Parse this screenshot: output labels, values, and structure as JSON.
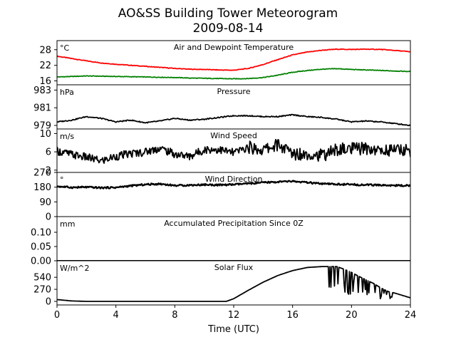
{
  "title_line1": "AO&SS Building Tower Meteorogram",
  "title_line2": "2009-08-14",
  "xlabel": "Time (UTC)",
  "colors": {
    "temperature": "#ff0000",
    "dewpoint": "#008000",
    "default": "#000000"
  },
  "chart_data": [
    {
      "id": "temp",
      "type": "line",
      "title": "Air and Dewpoint Temperature",
      "unit": "°C",
      "xlim": [
        0,
        24
      ],
      "ylim": [
        14.5,
        31.5
      ],
      "yticks": [
        16,
        22,
        28
      ],
      "ytick_labels": [
        "16",
        "22",
        "28"
      ],
      "series": [
        {
          "key": "temperature",
          "x": [
            0,
            1,
            2,
            3,
            4,
            5,
            6,
            7,
            8,
            9,
            10,
            11,
            12,
            13,
            14,
            15,
            16,
            17,
            18,
            19,
            20,
            21,
            22,
            23,
            24
          ],
          "values": [
            25.5,
            24.6,
            23.7,
            22.9,
            22.4,
            22.0,
            21.6,
            21.2,
            20.8,
            20.5,
            20.4,
            20.2,
            20.1,
            20.8,
            22.3,
            24.2,
            26.0,
            27.1,
            27.8,
            28.2,
            28.1,
            28.2,
            28.1,
            27.7,
            27.2
          ]
        },
        {
          "key": "dewpoint",
          "x": [
            0,
            1,
            2,
            3,
            4,
            5,
            6,
            7,
            8,
            9,
            10,
            11,
            12,
            13,
            14,
            15,
            16,
            17,
            18,
            19,
            20,
            21,
            22,
            23,
            24
          ],
          "values": [
            17.5,
            17.7,
            17.9,
            17.8,
            17.7,
            17.6,
            17.5,
            17.4,
            17.3,
            17.1,
            17.0,
            16.9,
            16.8,
            16.9,
            17.3,
            18.2,
            19.3,
            20.0,
            20.5,
            20.7,
            20.4,
            20.2,
            20.0,
            19.8,
            19.6
          ]
        }
      ]
    },
    {
      "id": "pressure",
      "type": "line",
      "title": "Pressure",
      "unit": "hPa",
      "xlim": [
        0,
        24
      ],
      "ylim": [
        978.6,
        983.6
      ],
      "yticks": [
        979,
        981,
        983
      ],
      "ytick_labels": [
        "979",
        "981",
        "983"
      ],
      "series": [
        {
          "key": "default",
          "x": [
            0,
            1,
            2,
            3,
            4,
            5,
            6,
            7,
            8,
            9,
            10,
            11,
            12,
            13,
            14,
            15,
            16,
            17,
            18,
            19,
            20,
            21,
            22,
            23,
            24
          ],
          "values": [
            979.4,
            979.6,
            980.0,
            979.8,
            979.4,
            979.6,
            979.3,
            979.5,
            979.8,
            979.6,
            979.7,
            979.9,
            980.1,
            980.1,
            980.0,
            980.0,
            980.2,
            980.0,
            979.9,
            979.7,
            979.4,
            979.5,
            979.4,
            979.2,
            979.0
          ]
        }
      ]
    },
    {
      "id": "wspd",
      "type": "line",
      "title": "Wind Speed",
      "unit": "m/s",
      "xlim": [
        0,
        24
      ],
      "ylim": [
        1.5,
        11.0
      ],
      "yticks": [
        2,
        6,
        10
      ],
      "ytick_labels": [
        "2",
        "6",
        "10"
      ],
      "series": [
        {
          "key": "default",
          "x": [
            0,
            1,
            2,
            3,
            4,
            5,
            6,
            7,
            8,
            9,
            10,
            11,
            12,
            13,
            14,
            15,
            16,
            17,
            18,
            19,
            20,
            21,
            22,
            23,
            24
          ],
          "values": [
            6.2,
            5.4,
            4.8,
            4.0,
            5.0,
            5.6,
            6.0,
            6.8,
            5.5,
            5.0,
            6.5,
            6.5,
            5.8,
            7.0,
            6.4,
            7.6,
            5.6,
            5.6,
            5.2,
            6.5,
            6.6,
            6.8,
            6.2,
            6.6,
            6.2
          ]
        }
      ]
    },
    {
      "id": "wdir",
      "type": "line",
      "title": "Wind Direction",
      "unit": "°",
      "xlim": [
        0,
        24
      ],
      "ylim": [
        0,
        270
      ],
      "yticks": [
        0,
        90,
        180,
        270
      ],
      "ytick_labels": [
        "0",
        "90",
        "180",
        "270"
      ],
      "series": [
        {
          "key": "default",
          "x": [
            0,
            1,
            2,
            3,
            4,
            5,
            6,
            7,
            8,
            9,
            10,
            11,
            12,
            13,
            14,
            15,
            16,
            17,
            18,
            19,
            20,
            21,
            22,
            23,
            24
          ],
          "values": [
            185,
            178,
            180,
            176,
            178,
            188,
            196,
            200,
            190,
            192,
            195,
            193,
            196,
            202,
            208,
            212,
            216,
            208,
            200,
            198,
            196,
            194,
            192,
            190,
            190
          ]
        }
      ]
    },
    {
      "id": "precip",
      "type": "line",
      "title": "Accumulated Precipitation Since 0Z",
      "unit": "mm",
      "xlim": [
        0,
        24
      ],
      "ylim": [
        0,
        0.155
      ],
      "yticks": [
        0.0,
        0.05,
        0.1
      ],
      "ytick_labels": [
        "0.00",
        "0.05",
        "0.10"
      ],
      "series": [
        {
          "key": "default",
          "x": [
            0,
            24
          ],
          "values": [
            0.0,
            0.0
          ]
        }
      ]
    },
    {
      "id": "solar",
      "type": "line",
      "title": "Solar Flux",
      "unit": "W/m^2",
      "xlim": [
        0,
        24
      ],
      "ylim": [
        -80,
        910
      ],
      "yticks": [
        0,
        270,
        540
      ],
      "ytick_labels": [
        "0",
        "270",
        "540"
      ],
      "series": [
        {
          "key": "default",
          "x": [
            0,
            1,
            2,
            3,
            4,
            5,
            6,
            7,
            8,
            9,
            10,
            11,
            11.5,
            12,
            13,
            14,
            15,
            16,
            17,
            18,
            18.5,
            19,
            19.5,
            20,
            20.5,
            21,
            21.5,
            22,
            22.5,
            23,
            24
          ],
          "values": [
            40,
            10,
            0,
            0,
            0,
            0,
            0,
            0,
            0,
            0,
            0,
            0,
            0,
            60,
            250,
            430,
            580,
            690,
            760,
            780,
            780,
            780,
            720,
            650,
            560,
            480,
            400,
            300,
            220,
            180,
            80
          ]
        }
      ]
    }
  ]
}
